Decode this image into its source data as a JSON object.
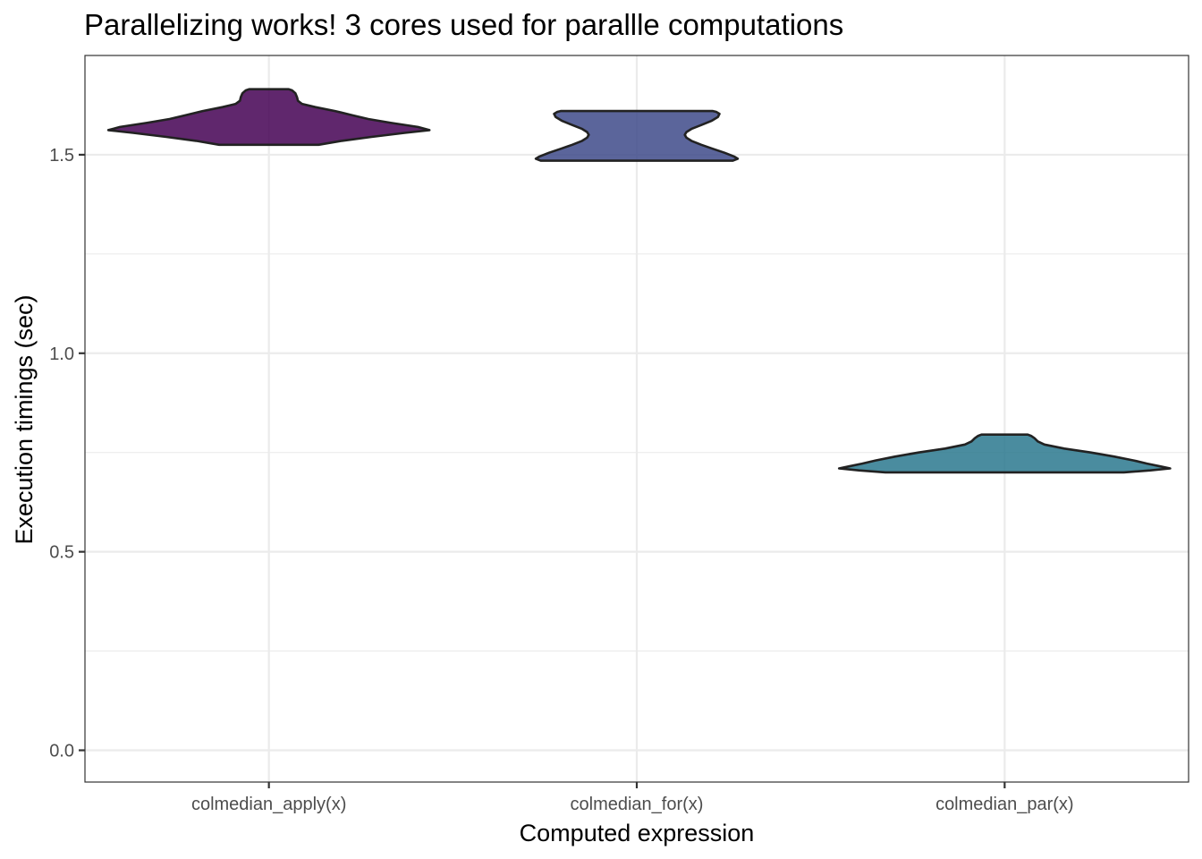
{
  "chart_data": {
    "type": "violin",
    "title": "Parallelizing works! 3 cores used for parallle computations",
    "xlabel": "Computed expression",
    "ylabel": "Execution timings (sec)",
    "ylim": [
      -0.08,
      1.75
    ],
    "yticks": [
      0.0,
      0.5,
      1.0,
      1.5
    ],
    "ytick_labels": [
      "0.0",
      "0.5",
      "1.0",
      "1.5"
    ],
    "grid": true,
    "legend": "none",
    "categories": [
      "colmedian_apply(x)",
      "colmedian_for(x)",
      "colmedian_par(x)"
    ],
    "series": [
      {
        "category": "colmedian_apply(x)",
        "color": "#440154",
        "min": 1.525,
        "max": 1.665,
        "density": [
          [
            1.525,
            0.3
          ],
          [
            1.535,
            0.44
          ],
          [
            1.545,
            0.62
          ],
          [
            1.555,
            0.82
          ],
          [
            1.562,
            0.97
          ],
          [
            1.57,
            0.9
          ],
          [
            1.58,
            0.74
          ],
          [
            1.59,
            0.6
          ],
          [
            1.6,
            0.5
          ],
          [
            1.61,
            0.4
          ],
          [
            1.62,
            0.28
          ],
          [
            1.628,
            0.2
          ],
          [
            1.636,
            0.175
          ],
          [
            1.645,
            0.17
          ],
          [
            1.655,
            0.16
          ],
          [
            1.662,
            0.14
          ],
          [
            1.665,
            0.12
          ]
        ]
      },
      {
        "category": "colmedian_for(x)",
        "color": "#3e4a89",
        "min": 1.485,
        "max": 1.61,
        "density": [
          [
            1.485,
            0.58
          ],
          [
            1.49,
            0.61
          ],
          [
            1.495,
            0.59
          ],
          [
            1.505,
            0.53
          ],
          [
            1.515,
            0.46
          ],
          [
            1.525,
            0.39
          ],
          [
            1.535,
            0.33
          ],
          [
            1.543,
            0.3
          ],
          [
            1.55,
            0.29
          ],
          [
            1.557,
            0.3
          ],
          [
            1.565,
            0.33
          ],
          [
            1.575,
            0.39
          ],
          [
            1.585,
            0.45
          ],
          [
            1.595,
            0.49
          ],
          [
            1.603,
            0.5
          ],
          [
            1.608,
            0.48
          ],
          [
            1.61,
            0.46
          ]
        ]
      },
      {
        "category": "colmedian_par(x)",
        "color": "#2a788e",
        "min": 0.7,
        "max": 0.795,
        "density": [
          [
            0.7,
            0.72
          ],
          [
            0.705,
            0.88
          ],
          [
            0.71,
            1.0
          ],
          [
            0.715,
            0.94
          ],
          [
            0.722,
            0.86
          ],
          [
            0.73,
            0.78
          ],
          [
            0.74,
            0.66
          ],
          [
            0.75,
            0.52
          ],
          [
            0.76,
            0.36
          ],
          [
            0.77,
            0.24
          ],
          [
            0.778,
            0.2
          ],
          [
            0.786,
            0.18
          ],
          [
            0.792,
            0.16
          ],
          [
            0.795,
            0.14
          ]
        ]
      }
    ]
  }
}
